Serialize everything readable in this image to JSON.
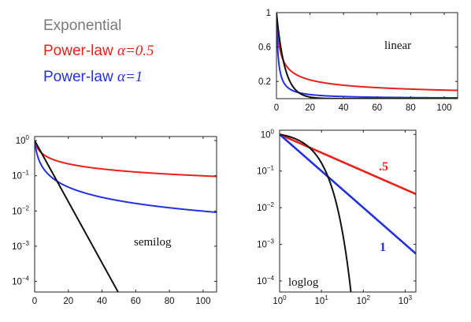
{
  "legend": {
    "exp_label": "Exponential",
    "pl05_label": "Power-law ",
    "pl05_math": "α=0.5",
    "pl1_label": "Power-law ",
    "pl1_math": "α=1"
  },
  "colors": {
    "exponential": "#111111",
    "powerlaw_05": "#e8211b",
    "powerlaw_1": "#2431e0",
    "exp_legend_text": "#7a7a7a"
  },
  "chart_data": [
    {
      "type": "line",
      "annotation": "linear",
      "x_scale": "linear",
      "y_scale": "linear",
      "xlim": [
        0,
        108
      ],
      "ylim": [
        0,
        1
      ],
      "x_ticks": [
        0,
        20,
        40,
        60,
        80,
        100
      ],
      "y_ticks": [
        1,
        0.6,
        0.2
      ],
      "y_tick_labels": [
        "1",
        "0.6",
        "0.2"
      ],
      "grid": false,
      "series": [
        {
          "key": "exponential",
          "function": "exp(-x/5)",
          "x": [
            0,
            5,
            10,
            15,
            20,
            30
          ],
          "y": [
            1,
            0.37,
            0.14,
            0.05,
            0.02,
            0.0
          ]
        },
        {
          "key": "powerlaw_05",
          "function": "(1+x)^-0.5",
          "x": [
            0,
            5,
            10,
            20,
            40,
            60,
            80,
            100
          ],
          "y": [
            1,
            0.41,
            0.3,
            0.22,
            0.16,
            0.13,
            0.11,
            0.1
          ]
        },
        {
          "key": "powerlaw_1",
          "function": "(1+x)^-1",
          "x": [
            0,
            5,
            10,
            20,
            40,
            60,
            80,
            100
          ],
          "y": [
            1,
            0.17,
            0.09,
            0.05,
            0.02,
            0.02,
            0.01,
            0.01
          ]
        }
      ]
    },
    {
      "type": "line",
      "annotation": "semilog",
      "x_scale": "linear",
      "y_scale": "log",
      "xlim": [
        0,
        108
      ],
      "ylim": [
        5e-05,
        1.3
      ],
      "x_ticks": [
        0,
        20,
        40,
        60,
        80,
        100
      ],
      "y_ticks": [
        1,
        0.1,
        0.01,
        0.001,
        0.0001
      ],
      "y_tick_labels": [
        [
          "10",
          "0"
        ],
        [
          "10",
          "−1"
        ],
        [
          "10",
          "−2"
        ],
        [
          "10",
          "−3"
        ],
        [
          "10",
          "−4"
        ]
      ],
      "grid": false,
      "series": [
        {
          "key": "exponential",
          "function": "exp(-x/5)",
          "x": [
            0,
            10,
            20,
            30,
            40,
            50
          ],
          "y": [
            1,
            0.135,
            0.018,
            0.0025,
            0.00034,
            4.5e-05
          ]
        },
        {
          "key": "powerlaw_05",
          "function": "(1+x)^-0.5",
          "x": [
            0,
            10,
            20,
            40,
            60,
            80,
            100
          ],
          "y": [
            1,
            0.3,
            0.22,
            0.16,
            0.13,
            0.11,
            0.1
          ]
        },
        {
          "key": "powerlaw_1",
          "function": "(1+x)^-1",
          "x": [
            0,
            10,
            20,
            40,
            60,
            80,
            100
          ],
          "y": [
            1,
            0.09,
            0.048,
            0.024,
            0.016,
            0.012,
            0.0099
          ]
        }
      ]
    },
    {
      "type": "line",
      "annotation": "loglog",
      "x_scale": "log",
      "y_scale": "log",
      "xlim": [
        1,
        1800
      ],
      "ylim": [
        5e-05,
        1.3
      ],
      "x_ticks": [
        1,
        10,
        100,
        1000
      ],
      "x_tick_labels": [
        [
          "10",
          "0"
        ],
        [
          "10",
          "1"
        ],
        [
          "10",
          "2"
        ],
        [
          "10",
          "3"
        ]
      ],
      "y_ticks": [
        1,
        0.1,
        0.01,
        0.001,
        0.0001
      ],
      "y_tick_labels": [
        [
          "10",
          "0"
        ],
        [
          "10",
          "−1"
        ],
        [
          "10",
          "−2"
        ],
        [
          "10",
          "−3"
        ],
        [
          "10",
          "−4"
        ]
      ],
      "grid": false,
      "series": [
        {
          "key": "exponential",
          "function": "exp(-(x-1)/5)",
          "x": [
            1,
            5,
            10,
            20,
            30,
            50
          ],
          "y": [
            1,
            0.45,
            0.17,
            0.022,
            0.003,
            6e-05
          ]
        },
        {
          "key": "powerlaw_05",
          "function": "x^-0.5",
          "x": [
            1,
            10,
            100,
            1000,
            1800
          ],
          "y": [
            1,
            0.316,
            0.1,
            0.0316,
            0.0236
          ],
          "label": ".5"
        },
        {
          "key": "powerlaw_1",
          "function": "x^-1",
          "x": [
            1,
            10,
            100,
            1000,
            1800
          ],
          "y": [
            1,
            0.1,
            0.01,
            0.001,
            0.00056
          ],
          "label": "1"
        }
      ]
    }
  ]
}
